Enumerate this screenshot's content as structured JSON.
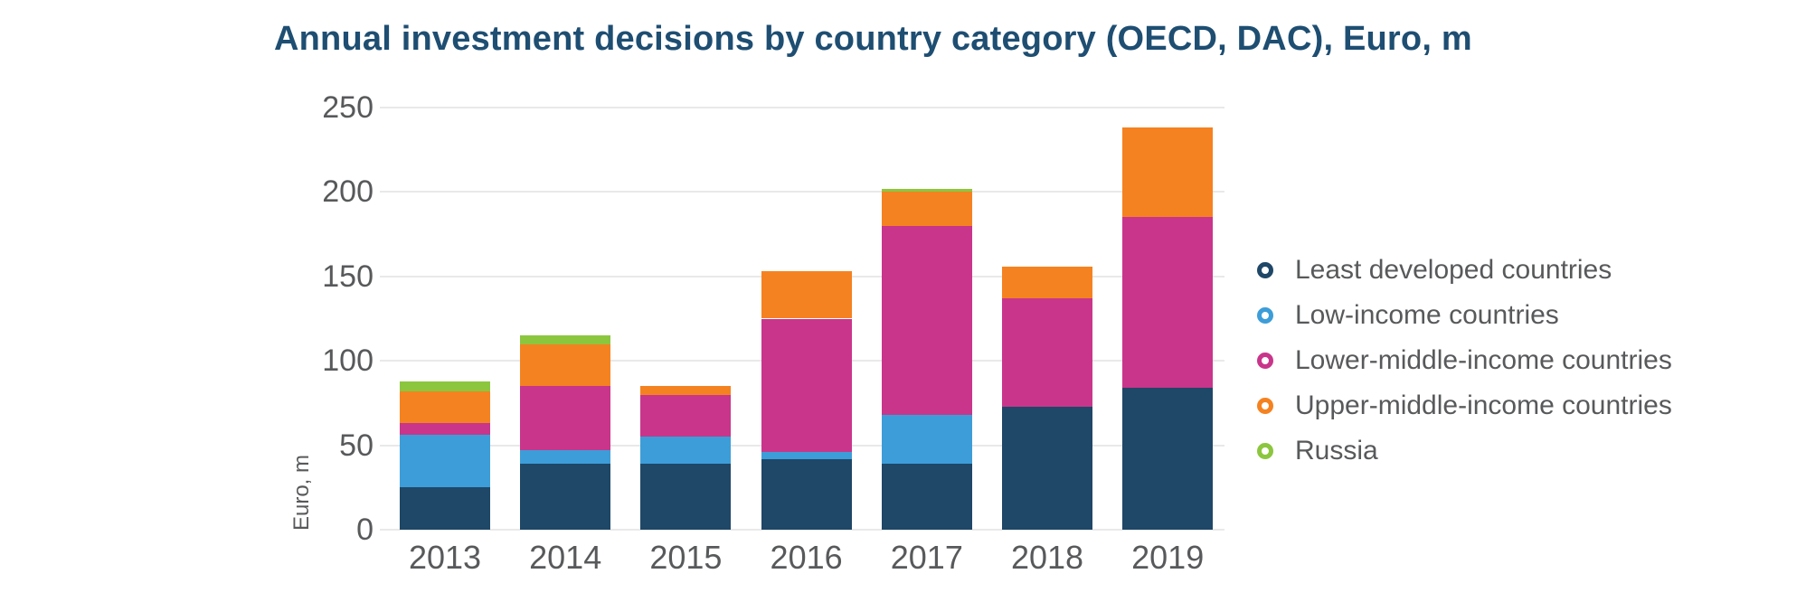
{
  "page": {
    "background_color": "#ffffff",
    "title_color": "#1e4e72",
    "axis_text_color": "#58595b",
    "gridline_color": "#e9e9e9"
  },
  "chart_data": {
    "type": "bar",
    "stacked": true,
    "title": "Annual investment decisions by country category (OECD, DAC), Euro, m",
    "ylabel": "Euro, m",
    "xlabel": "",
    "categories": [
      "2013",
      "2014",
      "2015",
      "2016",
      "2017",
      "2018",
      "2019"
    ],
    "series": [
      {
        "name": "Least developed countries",
        "color": "#1f4767",
        "values": [
          25,
          39,
          39,
          42,
          39,
          73,
          84
        ]
      },
      {
        "name": "Low-income countries",
        "color": "#3d9dd8",
        "values": [
          31,
          8,
          16,
          4,
          29,
          0,
          0
        ]
      },
      {
        "name": "Lower-middle-income countries",
        "color": "#c9358b",
        "values": [
          7,
          38,
          25,
          79,
          112,
          64,
          101
        ]
      },
      {
        "name": "Upper-middle-income countries",
        "color": "#f58220",
        "values": [
          19,
          25,
          5,
          28,
          20,
          19,
          53
        ]
      },
      {
        "name": "Russia",
        "color": "#8cc63f",
        "values": [
          6,
          5,
          0,
          0,
          2,
          0,
          0
        ]
      }
    ],
    "totals": [
      88,
      115,
      85,
      153,
      202,
      156,
      238
    ],
    "yticks": [
      0,
      50,
      100,
      150,
      200,
      250
    ],
    "ylim": [
      0,
      250
    ],
    "grid": true,
    "legend_position": "right",
    "legend_marker": "ring-icon"
  }
}
